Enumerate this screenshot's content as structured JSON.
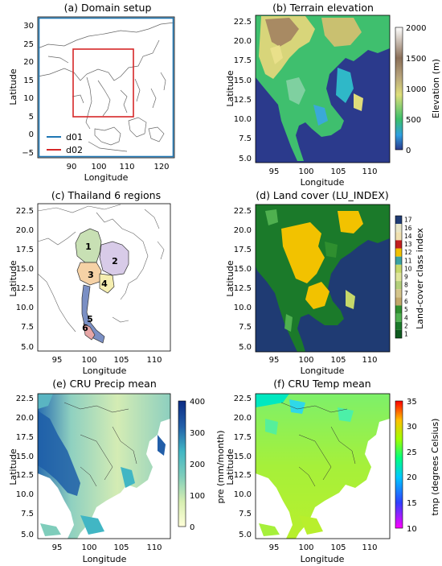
{
  "colors": {
    "ocean": "#2b3a8c",
    "land_outline": "#555555",
    "d01": "#1f77b4",
    "d02": "#d62728",
    "thai_regions": [
      "#c8e0b4",
      "#d8cbe8",
      "#f6d2a6",
      "#f5eeb0",
      "#7a8fc4",
      "#e7a6a6"
    ]
  },
  "panels": {
    "a": {
      "title": "(a) Domain setup",
      "xlabel": "Longitude",
      "ylabel": "Latitude",
      "xticks": [
        "90",
        "100",
        "110",
        "120"
      ],
      "yticks": [
        "30",
        "25",
        "20",
        "15",
        "10",
        "5",
        "0",
        "−5"
      ],
      "legend": [
        {
          "label": "d01",
          "color": "#1f77b4"
        },
        {
          "label": "d02",
          "color": "#d62728"
        }
      ]
    },
    "b": {
      "title": "(b) Terrain elevation",
      "xlabel": "Longitude",
      "ylabel": "Latitude",
      "xticks": [
        "95",
        "100",
        "105",
        "110"
      ],
      "yticks": [
        "22.5",
        "20.0",
        "17.5",
        "15.0",
        "12.5",
        "10.0",
        "7.5",
        "5.0"
      ],
      "colorbar": {
        "label": "Elevation (m)",
        "ticks": [
          "2000",
          "1500",
          "1000",
          "500",
          "0"
        ],
        "range": [
          0,
          2000
        ]
      }
    },
    "c": {
      "title": "(c) Thailand 6 regions",
      "xlabel": "Longitude",
      "ylabel": "Latitude",
      "xticks": [
        "95",
        "100",
        "105",
        "110"
      ],
      "yticks": [
        "22.5",
        "20.0",
        "17.5",
        "15.0",
        "12.5",
        "10.0",
        "7.5",
        "5.0"
      ],
      "region_labels": [
        "1",
        "2",
        "3",
        "4",
        "5",
        "6"
      ]
    },
    "d": {
      "title": "(d) Land cover (LU_INDEX)",
      "xlabel": "Longitude",
      "ylabel": "Latitude",
      "xticks": [
        "95",
        "100",
        "105",
        "110"
      ],
      "yticks": [
        "22.5",
        "20.0",
        "17.5",
        "15.0",
        "12.5",
        "10.0",
        "7.5",
        "5.0"
      ],
      "colorbar": {
        "label": "Land-cover class index",
        "classes": [
          "17",
          "16",
          "14",
          "13",
          "12",
          "11",
          "10",
          "9",
          "8",
          "7",
          "6",
          "5",
          "4",
          "2",
          "1"
        ],
        "class_colors": [
          "#1f3b73",
          "#e8e6c8",
          "#f0e0b0",
          "#c21f1f",
          "#f2c200",
          "#3aa2a2",
          "#c6d86a",
          "#dfe59a",
          "#b3cf7a",
          "#d4c48a",
          "#c2a86a",
          "#2f8f2f",
          "#4fb04f",
          "#1b7a2a",
          "#0f5a1f"
        ]
      }
    },
    "e": {
      "title": "(e) CRU Precip mean",
      "xlabel": "Longitude",
      "ylabel": "Latitude",
      "xticks": [
        "95",
        "100",
        "105",
        "110"
      ],
      "yticks": [
        "22.5",
        "20.0",
        "17.5",
        "15.0",
        "12.5",
        "10.0",
        "7.5",
        "5.0"
      ],
      "colorbar": {
        "label": "pre (mm/month)",
        "ticks": [
          "400",
          "300",
          "200",
          "100",
          "0"
        ],
        "range": [
          0,
          400
        ]
      }
    },
    "f": {
      "title": "(f) CRU Temp mean",
      "xlabel": "Longitude",
      "ylabel": "Latitude",
      "xticks": [
        "95",
        "100",
        "105",
        "110"
      ],
      "yticks": [
        "22.5",
        "20.0",
        "17.5",
        "15.0",
        "12.5",
        "10.0",
        "7.5",
        "5.0"
      ],
      "colorbar": {
        "label": "tmp (degrees Celsius)",
        "ticks": [
          "35",
          "30",
          "25",
          "20",
          "15",
          "10"
        ],
        "range": [
          10,
          35
        ]
      }
    }
  }
}
